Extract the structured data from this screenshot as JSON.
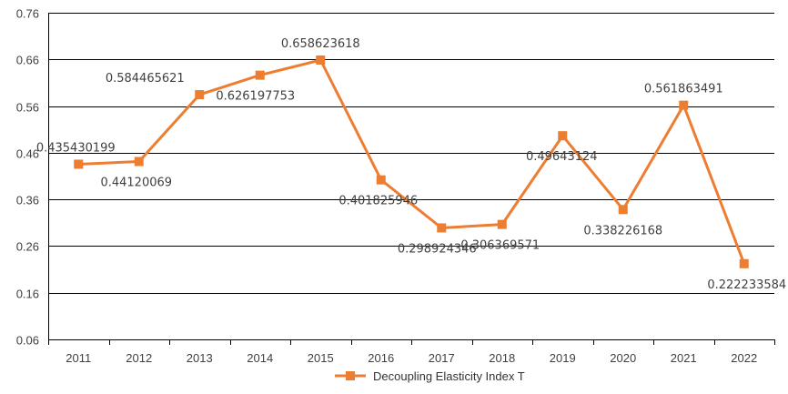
{
  "chart_data": {
    "type": "line",
    "title": "",
    "xlabel": "",
    "ylabel": "",
    "categories": [
      "2011",
      "2012",
      "2013",
      "2014",
      "2015",
      "2016",
      "2017",
      "2018",
      "2019",
      "2020",
      "2021",
      "2022"
    ],
    "y_ticks": [
      "0.06",
      "0.16",
      "0.26",
      "0.36",
      "0.46",
      "0.56",
      "0.66",
      "0.76"
    ],
    "ylim": [
      0.06,
      0.76
    ],
    "grid": "horizontal",
    "legend_position": "bottom",
    "color": "#ED7D31",
    "series": [
      {
        "name": "Decoupling Elasticity Index T",
        "values": [
          0.435430199,
          0.44120069,
          0.584465621,
          0.626197753,
          0.658623618,
          0.401825946,
          0.298924346,
          0.306369571,
          0.49643124,
          0.338226168,
          0.561863491,
          0.222233584
        ],
        "labels": [
          "0.435430199",
          "0.44120069",
          "0.584465621",
          "0.626197753",
          "0.658623618",
          "0.401825946",
          "0.298924346",
          "0.306369571",
          "0.49643124",
          "0.338226168",
          "0.561863491",
          "0.222233584"
        ]
      }
    ]
  }
}
